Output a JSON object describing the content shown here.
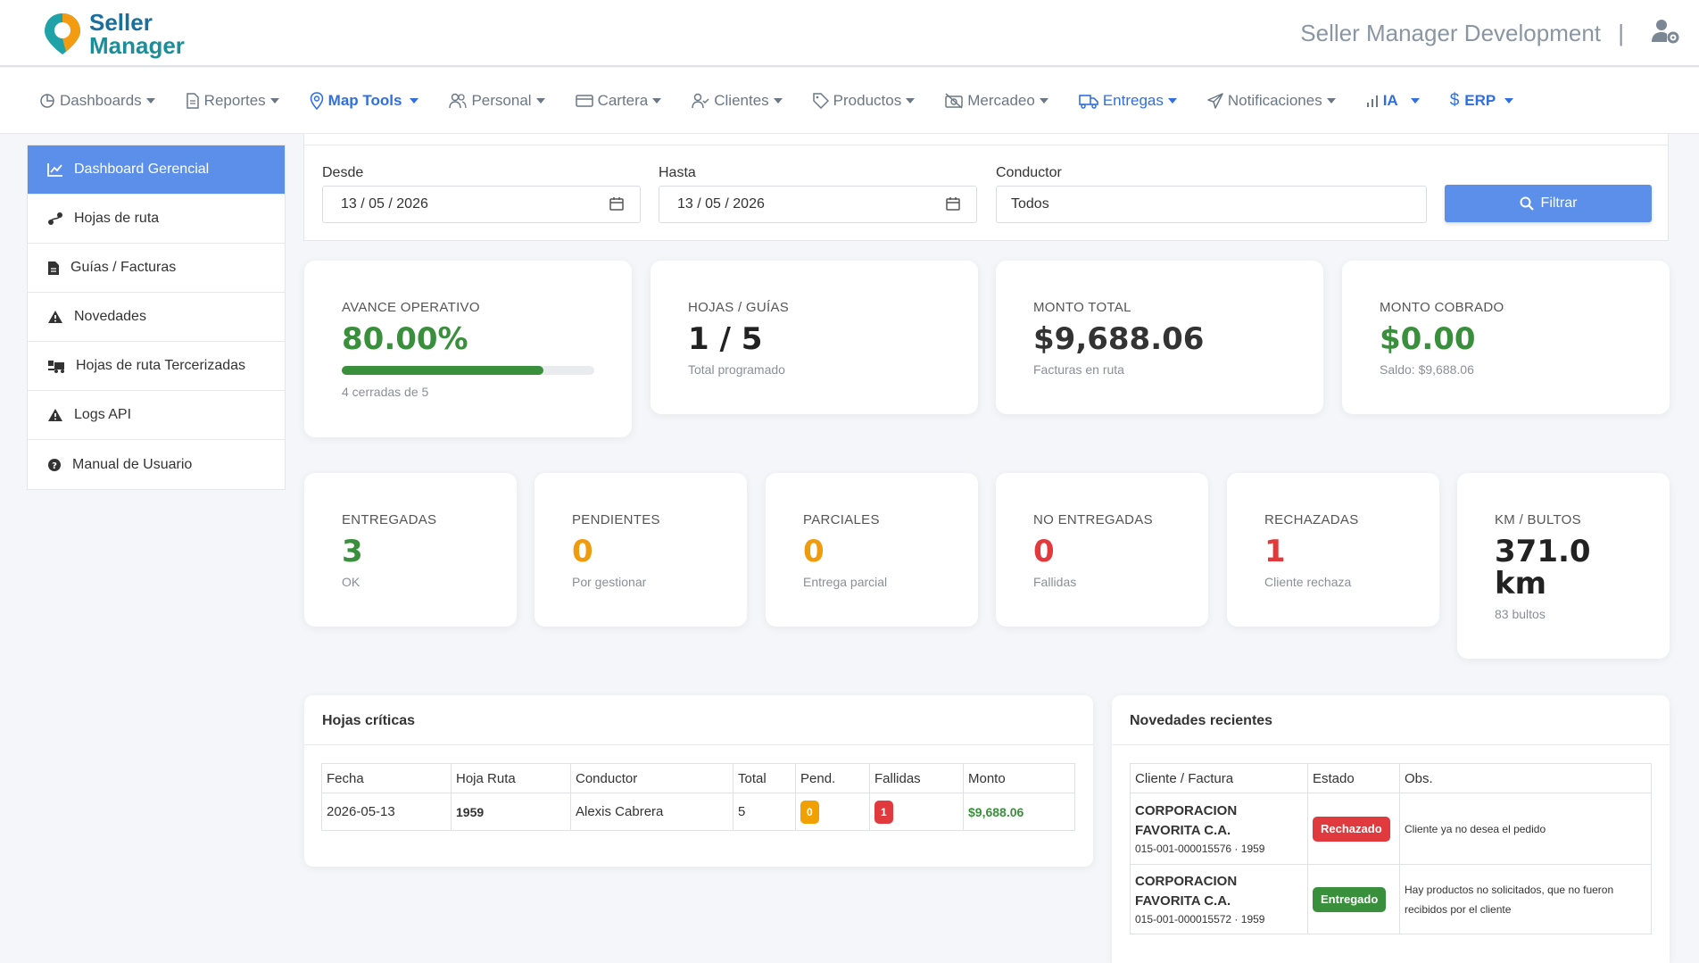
{
  "brand": {
    "line1": "Seller",
    "line2": "Manager"
  },
  "header": {
    "app_title": "Seller Manager Development",
    "separator": "|"
  },
  "nav": [
    {
      "label": "Dashboards",
      "icon": "chart-pie-icon"
    },
    {
      "label": "Reportes",
      "icon": "document-icon"
    },
    {
      "label": "Map Tools",
      "icon": "map-pin-icon"
    },
    {
      "label": "Personal",
      "icon": "users-icon"
    },
    {
      "label": "Cartera",
      "icon": "credit-card-icon"
    },
    {
      "label": "Clientes",
      "icon": "user-check-icon"
    },
    {
      "label": "Productos",
      "icon": "tag-icon"
    },
    {
      "label": "Mercadeo",
      "icon": "camera-off-icon"
    },
    {
      "label": "Entregas",
      "icon": "truck-icon"
    },
    {
      "label": "Notificaciones",
      "icon": "send-icon"
    },
    {
      "label": "IA",
      "icon": "bar-signal-icon"
    },
    {
      "label": "ERP",
      "icon": "dollar-icon"
    }
  ],
  "sidebar": [
    {
      "label": "Dashboard Gerencial",
      "icon": "chart-line-icon"
    },
    {
      "label": "Hojas de ruta",
      "icon": "route-icon"
    },
    {
      "label": "Guías / Facturas",
      "icon": "file-icon"
    },
    {
      "label": "Novedades",
      "icon": "warning-icon"
    },
    {
      "label": "Hojas de ruta Tercerizadas",
      "icon": "truck-loading-icon"
    },
    {
      "label": "Logs API",
      "icon": "warning-icon"
    },
    {
      "label": "Manual de Usuario",
      "icon": "question-circle-icon"
    }
  ],
  "filters": {
    "desde_label": "Desde",
    "desde_value": "13 / 05 / 2026",
    "hasta_label": "Hasta",
    "hasta_value": "13 / 05 / 2026",
    "conductor_label": "Conductor",
    "conductor_value": "Todos",
    "button_label": "Filtrar"
  },
  "kpis_top": {
    "avance": {
      "label": "AVANCE OPERATIVO",
      "value": "80.00%",
      "sub": "4 cerradas de 5",
      "progress": 0.8
    },
    "hojas": {
      "label": "HOJAS / GUÍAS",
      "value": "1 / 5",
      "sub": "Total programado"
    },
    "monto_total": {
      "label": "MONTO TOTAL",
      "value": "$9,688.06",
      "sub": "Facturas en ruta"
    },
    "monto_cobrado": {
      "label": "MONTO COBRADO",
      "value": "$0.00",
      "sub": "Saldo: $9,688.06"
    }
  },
  "kpis_bottom": {
    "entregadas": {
      "label": "ENTREGADAS",
      "value": "3",
      "sub": "OK",
      "color": "#3a8f3c"
    },
    "pendientes": {
      "label": "PENDIENTES",
      "value": "0",
      "sub": "Por gestionar",
      "color": "#f09a0e"
    },
    "parciales": {
      "label": "PARCIALES",
      "value": "0",
      "sub": "Entrega parcial",
      "color": "#f09a0e"
    },
    "no_entregadas": {
      "label": "NO ENTREGADAS",
      "value": "0",
      "sub": "Fallidas",
      "color": "#e4393c"
    },
    "rechazadas": {
      "label": "RECHAZADAS",
      "value": "1",
      "sub": "Cliente rechaza",
      "color": "#e4393c"
    },
    "km": {
      "label": "KM / BULTOS",
      "value1": "371.0",
      "value2": "km",
      "sub": "83 bultos"
    }
  },
  "hojas_criticas": {
    "title": "Hojas críticas",
    "headers": [
      "Fecha",
      "Hoja Ruta",
      "Conductor",
      "Total",
      "Pend.",
      "Fallidas",
      "Monto"
    ],
    "rows": [
      {
        "fecha": "2026-05-13",
        "hoja": "1959",
        "conductor": "Alexis Cabrera",
        "total": "5",
        "pend": "0",
        "fallidas": "1",
        "monto": "$9,688.06"
      }
    ]
  },
  "novedades": {
    "title": "Novedades recientes",
    "headers": [
      "Cliente / Factura",
      "Estado",
      "Obs."
    ],
    "rows": [
      {
        "cliente_l1": "CORPORACION",
        "cliente_l2": "FAVORITA C.A.",
        "factura": "015-001-000015576 · 1959",
        "estado": "Rechazado",
        "obs": "Cliente ya no desea el pedido"
      },
      {
        "cliente_l1": "CORPORACION",
        "cliente_l2": "FAVORITA C.A.",
        "factura": "015-001-000015572 · 1959",
        "estado": "Entregado",
        "obs": "Hay productos no solicitados, que no fueron recibidos por el cliente"
      }
    ]
  }
}
